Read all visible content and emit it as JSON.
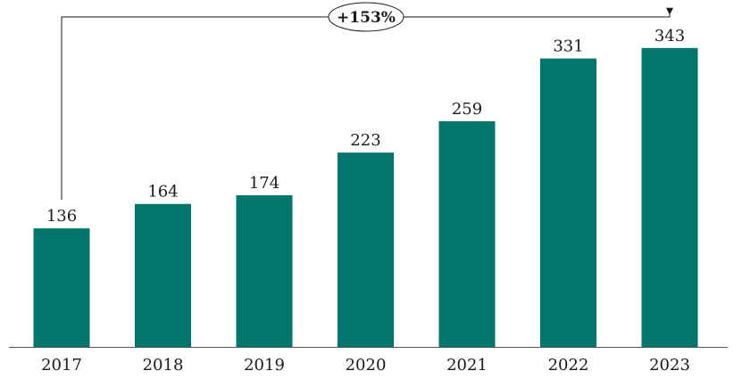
{
  "chart_data": {
    "type": "bar",
    "categories": [
      "2017",
      "2018",
      "2019",
      "2020",
      "2021",
      "2022",
      "2023"
    ],
    "values": [
      136,
      164,
      174,
      223,
      259,
      331,
      343
    ],
    "title": "",
    "xlabel": "",
    "ylabel": "",
    "ylim": [
      0,
      350
    ],
    "grid": false,
    "legend": "none",
    "bar_color": "#00766D",
    "data_labels": true,
    "annotation": {
      "text": "+153%",
      "from": "2017",
      "to": "2023"
    }
  }
}
